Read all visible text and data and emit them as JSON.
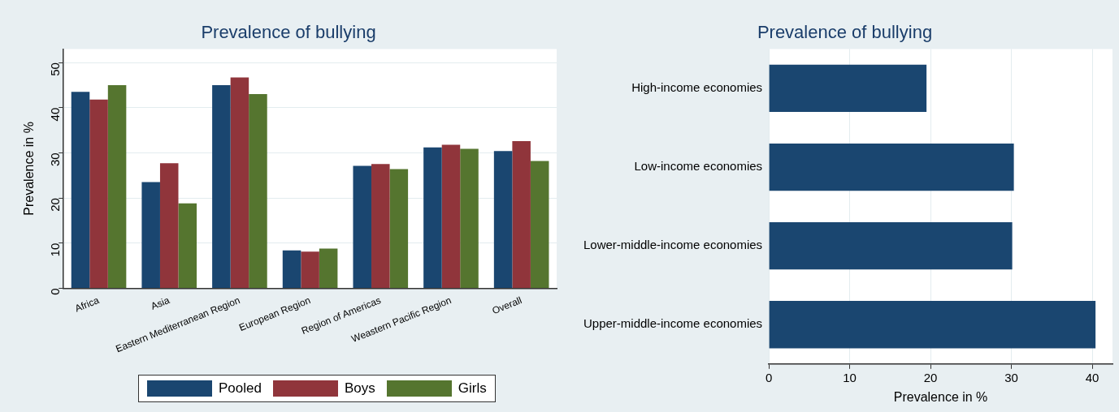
{
  "chart_data": [
    {
      "type": "bar",
      "title": "Prevalence of bullying",
      "ylabel": "Prevalence in %",
      "categories": [
        "Africa",
        "Asia",
        "Eastern Mediterranean Region",
        "European Region",
        "Region of Americas",
        "Weastern Pacific Region",
        "Overall"
      ],
      "series": [
        {
          "name": "Pooled",
          "color": "#1a4670",
          "values": [
            43.5,
            23.5,
            45,
            8.4,
            27.1,
            31.2,
            30.4
          ]
        },
        {
          "name": "Boys",
          "color": "#90353b",
          "values": [
            41.8,
            27.7,
            46.7,
            8.1,
            27.5,
            31.8,
            32.6
          ]
        },
        {
          "name": "Girls",
          "color": "#55752f",
          "values": [
            45,
            18.8,
            43,
            8.8,
            26.4,
            30.9,
            28.2
          ]
        }
      ],
      "ylim": [
        0,
        53
      ],
      "yticks": [
        0,
        10,
        20,
        30,
        40,
        50
      ],
      "grid": "y",
      "legend": "bottom"
    },
    {
      "type": "bar",
      "title": "Prevalence of bullying",
      "xlabel": "Prevalence in %",
      "orientation": "horizontal",
      "categories": [
        "High-income economies",
        "Low-income economies",
        "Lower-middle-income economies",
        "Upper-middle-income economies"
      ],
      "values": [
        19.5,
        30.3,
        30.1,
        40.4
      ],
      "color": "#1a4670",
      "xlim": [
        0,
        42.5
      ],
      "xticks": [
        0,
        10,
        20,
        30,
        40
      ],
      "grid": "x"
    }
  ]
}
